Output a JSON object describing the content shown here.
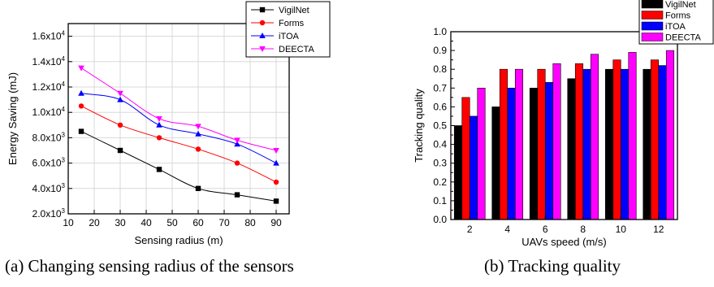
{
  "chart_data": [
    {
      "type": "line",
      "title": "",
      "xlabel": "Sensing radius (m)",
      "ylabel": "Energy Saving (mJ)",
      "x": [
        15,
        30,
        45,
        60,
        75,
        90
      ],
      "xlim": [
        10,
        95
      ],
      "ylim": [
        2000,
        17000
      ],
      "xticks": [
        10,
        20,
        30,
        40,
        50,
        60,
        70,
        80,
        90
      ],
      "yticks": [
        {
          "value": 2000,
          "mant": "2.0x10",
          "exp": "3"
        },
        {
          "value": 4000,
          "mant": "4.0x10",
          "exp": "3"
        },
        {
          "value": 6000,
          "mant": "6.0x10",
          "exp": "3"
        },
        {
          "value": 8000,
          "mant": "8.0x10",
          "exp": "3"
        },
        {
          "value": 10000,
          "mant": "1.0x10",
          "exp": "4"
        },
        {
          "value": 12000,
          "mant": "1.2x10",
          "exp": "4"
        },
        {
          "value": 14000,
          "mant": "1.4x10",
          "exp": "4"
        },
        {
          "value": 16000,
          "mant": "1.6x10",
          "exp": "4"
        }
      ],
      "grid": true,
      "legend_position": "top-right",
      "series": [
        {
          "name": "VigilNet",
          "color": "#000000",
          "marker": "square",
          "values": [
            8500,
            7000,
            5500,
            4000,
            3500,
            3000
          ]
        },
        {
          "name": "Forms",
          "color": "#ff0000",
          "marker": "circle",
          "values": [
            10500,
            9000,
            8000,
            7100,
            6000,
            4500
          ]
        },
        {
          "name": "iTOA",
          "color": "#0000ff",
          "marker": "triangle-up",
          "values": [
            11500,
            11000,
            9000,
            8300,
            7500,
            6000
          ]
        },
        {
          "name": "DEECTA",
          "color": "#ff00ff",
          "marker": "triangle-down",
          "values": [
            13500,
            11500,
            9500,
            8900,
            7800,
            7000
          ]
        }
      ],
      "caption": "(a) Changing sensing radius of the sensors"
    },
    {
      "type": "bar",
      "title": "",
      "xlabel": "UAVs speed (m/s)",
      "ylabel": "Tracking quality",
      "categories": [
        "2",
        "4",
        "6",
        "8",
        "10",
        "12"
      ],
      "ylim": [
        0.0,
        1.0
      ],
      "yticks": [
        "0.0",
        "0.1",
        "0.2",
        "0.3",
        "0.4",
        "0.5",
        "0.6",
        "0.7",
        "0.8",
        "0.9",
        "1.0"
      ],
      "legend_position": "top-right",
      "series": [
        {
          "name": "VigilNet",
          "color": "#000000",
          "values": [
            0.5,
            0.6,
            0.7,
            0.75,
            0.8,
            0.8
          ]
        },
        {
          "name": "Forms",
          "color": "#ff0000",
          "values": [
            0.65,
            0.8,
            0.8,
            0.83,
            0.85,
            0.85
          ]
        },
        {
          "name": "iTOA",
          "color": "#0000ff",
          "values": [
            0.55,
            0.7,
            0.73,
            0.8,
            0.8,
            0.82
          ]
        },
        {
          "name": "DEECTA",
          "color": "#ff00ff",
          "values": [
            0.7,
            0.8,
            0.83,
            0.88,
            0.89,
            0.9
          ]
        }
      ],
      "caption": "(b) Tracking quality"
    }
  ]
}
